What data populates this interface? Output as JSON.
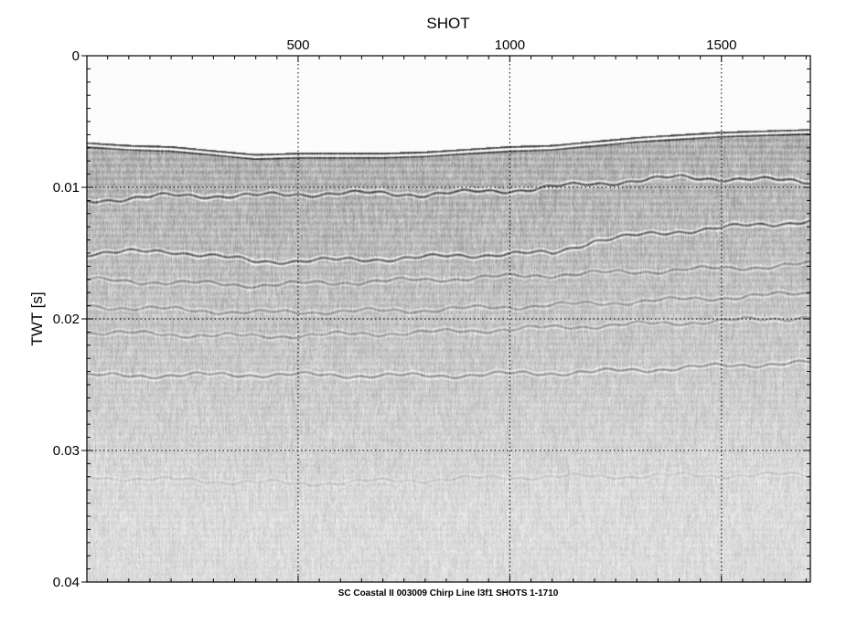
{
  "chart_data": {
    "type": "heatmap",
    "title": "",
    "caption": "SC Coastal II 003009 Chirp Line l3f1 SHOTS 1-1710",
    "xlabel": "SHOT",
    "ylabel": "TWT [s]",
    "x_axis_position": "top",
    "xlim": [
      1,
      1710
    ],
    "ylim": [
      0,
      0.04
    ],
    "y_inverted": true,
    "x_ticks": [
      500,
      1000,
      1500
    ],
    "x_tick_labels": [
      "500",
      "1000",
      "1500"
    ],
    "y_ticks": [
      0,
      0.01,
      0.02,
      0.03,
      0.04
    ],
    "y_tick_labels": [
      "0",
      "0.01",
      "0.02",
      "0.03",
      "0.04"
    ],
    "grid": true,
    "colormap": "grayscale",
    "seafloor_twt": {
      "shot": [
        1,
        100,
        200,
        300,
        400,
        500,
        600,
        700,
        800,
        900,
        1000,
        1100,
        1200,
        1300,
        1400,
        1500,
        1600,
        1710
      ],
      "twt": [
        0.0066,
        0.0068,
        0.0069,
        0.0072,
        0.0075,
        0.0074,
        0.0074,
        0.0074,
        0.0073,
        0.0071,
        0.0069,
        0.0068,
        0.0065,
        0.0062,
        0.006,
        0.0058,
        0.0057,
        0.0056
      ]
    },
    "reflectors": [
      {
        "shot": [
          1,
          200,
          400,
          600,
          800,
          1000,
          1200,
          1400,
          1600,
          1710
        ],
        "twt": [
          0.011,
          0.0106,
          0.0106,
          0.0104,
          0.0105,
          0.0102,
          0.0097,
          0.0092,
          0.0094,
          0.0095
        ],
        "strength": 0.85
      },
      {
        "shot": [
          1,
          200,
          400,
          600,
          800,
          1000,
          1100,
          1200,
          1400,
          1600,
          1710
        ],
        "twt": [
          0.015,
          0.0148,
          0.0156,
          0.0155,
          0.0153,
          0.015,
          0.015,
          0.014,
          0.0133,
          0.0128,
          0.0125
        ],
        "strength": 0.8
      },
      {
        "shot": [
          1,
          400,
          800,
          1200,
          1600,
          1710
        ],
        "twt": [
          0.017,
          0.0174,
          0.017,
          0.0165,
          0.016,
          0.0158
        ],
        "strength": 0.45
      },
      {
        "shot": [
          1,
          400,
          800,
          1200,
          1600,
          1710
        ],
        "twt": [
          0.019,
          0.0195,
          0.0193,
          0.0188,
          0.0182,
          0.018
        ],
        "strength": 0.4
      },
      {
        "shot": [
          1,
          400,
          800,
          1200,
          1600,
          1710
        ],
        "twt": [
          0.021,
          0.0213,
          0.021,
          0.0205,
          0.02,
          0.0198
        ],
        "strength": 0.4
      },
      {
        "shot": [
          1,
          400,
          800,
          1200,
          1600,
          1710
        ],
        "twt": [
          0.0243,
          0.0242,
          0.0243,
          0.024,
          0.0234,
          0.0233
        ],
        "strength": 0.5
      },
      {
        "shot": [
          1,
          500,
          1000,
          1710
        ],
        "twt": [
          0.032,
          0.0325,
          0.032,
          0.0318
        ],
        "strength": 0.15
      }
    ]
  }
}
